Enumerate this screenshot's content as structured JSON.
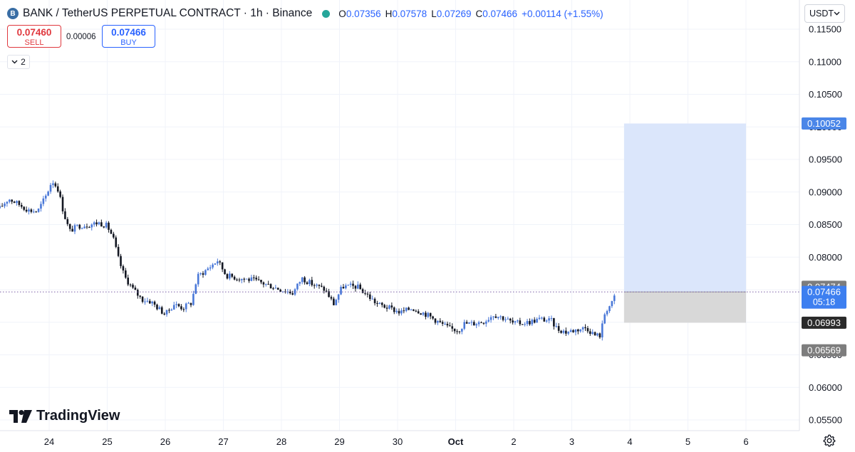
{
  "header": {
    "symbol_icon": "bank-coin-icon",
    "title": "BANK / TetherUS PERPETUAL CONTRACT · 1h · Binance",
    "ohlc": {
      "o_label": "O",
      "o": "0.07356",
      "h_label": "H",
      "h": "0.07578",
      "l_label": "L",
      "l": "0.07269",
      "c_label": "C",
      "c": "0.07466",
      "change": "+0.00114 (+1.55%)"
    }
  },
  "trade": {
    "sell_price": "0.07460",
    "sell_label": "SELL",
    "spread": "0.00006",
    "buy_price": "0.07466",
    "buy_label": "BUY"
  },
  "indicators_toggle": {
    "icon": "chevron-down-icon",
    "count": "2"
  },
  "currency": {
    "label": "USDT",
    "icon": "chevron-down-icon"
  },
  "logo": {
    "text": "TradingView",
    "icon": "tradingview-logo-icon"
  },
  "settings": {
    "icon": "gear-icon"
  },
  "colors": {
    "up": "#4a78d8",
    "down": "#131722",
    "accent": "#2962ff",
    "sell": "#e0383e",
    "target_zone": "#dbe6fb",
    "stop_zone": "#d8d8d8"
  },
  "chart_data": {
    "type": "candlestick",
    "x_tick_labels": [
      "24",
      "25",
      "26",
      "27",
      "28",
      "29",
      "30",
      "Oct",
      "2",
      "3",
      "4",
      "5",
      "6"
    ],
    "y_tick_labels": [
      "0.11500",
      "0.11000",
      "0.10500",
      "0.10000",
      "0.09500",
      "0.09000",
      "0.08500",
      "0.08000",
      "0.07500",
      "0.07000",
      "0.06500",
      "0.06000",
      "0.05500"
    ],
    "y_ticks": [
      0.115,
      0.11,
      0.105,
      0.1,
      0.095,
      0.09,
      0.085,
      0.08,
      0.075,
      0.07,
      0.065,
      0.06,
      0.055
    ],
    "ylim": [
      0.0535,
      0.1173
    ],
    "xlim": [
      23.15,
      6.8
    ],
    "day_index": {
      "24": 0,
      "25": 1,
      "26": 2,
      "27": 3,
      "28": 4,
      "29": 5,
      "30": 6,
      "Oct": 7,
      "2": 8,
      "3": 9,
      "4": 10,
      "5": 11,
      "6": 12
    },
    "x_start_day": -0.85,
    "x_end_day": 12.8,
    "candles_per_day": 24,
    "price_path": [
      [
        -0.85,
        0.0875
      ],
      [
        -0.7,
        0.089
      ],
      [
        -0.5,
        0.088
      ],
      [
        -0.35,
        0.0872
      ],
      [
        -0.2,
        0.087
      ],
      [
        -0.05,
        0.0895
      ],
      [
        0.05,
        0.0918
      ],
      [
        0.15,
        0.0905
      ],
      [
        0.25,
        0.0868
      ],
      [
        0.35,
        0.084
      ],
      [
        0.5,
        0.0848
      ],
      [
        0.7,
        0.085
      ],
      [
        0.85,
        0.0853
      ],
      [
        1.0,
        0.0848
      ],
      [
        1.1,
        0.083
      ],
      [
        1.2,
        0.0795
      ],
      [
        1.3,
        0.077
      ],
      [
        1.45,
        0.075
      ],
      [
        1.6,
        0.0735
      ],
      [
        1.75,
        0.0732
      ],
      [
        1.9,
        0.072
      ],
      [
        2.0,
        0.0712
      ],
      [
        2.15,
        0.0728
      ],
      [
        2.3,
        0.0722
      ],
      [
        2.45,
        0.073
      ],
      [
        2.55,
        0.077
      ],
      [
        2.7,
        0.078
      ],
      [
        2.9,
        0.0795
      ],
      [
        3.05,
        0.0772
      ],
      [
        3.25,
        0.0768
      ],
      [
        3.5,
        0.0765
      ],
      [
        3.75,
        0.0758
      ],
      [
        4.0,
        0.075
      ],
      [
        4.2,
        0.0745
      ],
      [
        4.35,
        0.0768
      ],
      [
        4.5,
        0.076
      ],
      [
        4.75,
        0.075
      ],
      [
        4.9,
        0.0728
      ],
      [
        5.05,
        0.0755
      ],
      [
        5.3,
        0.0755
      ],
      [
        5.5,
        0.074
      ],
      [
        5.65,
        0.0728
      ],
      [
        5.85,
        0.0722
      ],
      [
        6.05,
        0.0715
      ],
      [
        6.25,
        0.0722
      ],
      [
        6.5,
        0.0712
      ],
      [
        6.75,
        0.0698
      ],
      [
        6.9,
        0.069
      ],
      [
        7.05,
        0.0688
      ],
      [
        7.15,
        0.0698
      ],
      [
        7.3,
        0.0698
      ],
      [
        7.5,
        0.0702
      ],
      [
        7.65,
        0.0712
      ],
      [
        7.85,
        0.0706
      ],
      [
        8.0,
        0.0698
      ],
      [
        8.25,
        0.07
      ],
      [
        8.45,
        0.0705
      ],
      [
        8.65,
        0.0702
      ],
      [
        8.75,
        0.069
      ],
      [
        8.9,
        0.0685
      ],
      [
        9.05,
        0.0688
      ],
      [
        9.25,
        0.0692
      ],
      [
        9.4,
        0.068
      ],
      [
        9.5,
        0.068
      ],
      [
        9.55,
        0.071
      ],
      [
        9.6,
        0.072
      ],
      [
        9.7,
        0.073
      ],
      [
        9.75,
        0.07466
      ]
    ],
    "position": {
      "type": "long",
      "start_day": 9.9,
      "end_day": 12.0,
      "entry": 0.07466,
      "target": 0.10052,
      "stop": 0.06993
    },
    "current_price_line": 0.07466,
    "price_labels": [
      {
        "text": "0.10052",
        "value": 0.10052,
        "style": "target"
      },
      {
        "text": "0.07474",
        "value": 0.07474,
        "style": "gray"
      },
      {
        "text": "0.07466",
        "value": 0.07466,
        "sub": "05:18",
        "style": "current"
      },
      {
        "text": "0.06993",
        "value": 0.06993,
        "style": "dark"
      },
      {
        "text": "0.06569",
        "value": 0.06569,
        "style": "gray"
      }
    ]
  }
}
